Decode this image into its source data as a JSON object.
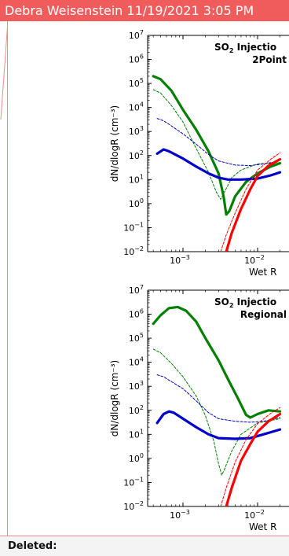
{
  "comment": {
    "author_date": "Debra Weisenstein 11/19/2021 3:05 PM",
    "footer_label": "Deleted:"
  },
  "colors": {
    "header_bg": "#f05c5c",
    "green": "#008000",
    "blue": "#0000c8",
    "red": "#ff0000"
  },
  "chart_data": [
    {
      "type": "line",
      "title_line1": "SO",
      "title_sub": "2",
      "title_rest": " Injectio",
      "title_line2": "2Point",
      "ylabel": "dN/dlogR (cm⁻³)",
      "xlabel": "Wet R",
      "x_scale": "log",
      "y_scale": "log",
      "ylim": [
        0.01,
        10000000
      ],
      "y_ticks": [
        {
          "exp": 7,
          "label": "10",
          "sup": "7"
        },
        {
          "exp": 6,
          "label": "10",
          "sup": "6"
        },
        {
          "exp": 5,
          "label": "10",
          "sup": "5"
        },
        {
          "exp": 4,
          "label": "10",
          "sup": "4"
        },
        {
          "exp": 3,
          "label": "10",
          "sup": "3"
        },
        {
          "exp": 2,
          "label": "10",
          "sup": "2"
        },
        {
          "exp": 1,
          "label": "10",
          "sup": "1"
        },
        {
          "exp": 0,
          "label": "10",
          "sup": "0"
        },
        {
          "exp": -1,
          "label": "10",
          "sup": "−1"
        },
        {
          "exp": -2,
          "label": "10",
          "sup": "−2"
        }
      ],
      "x_ticks": [
        {
          "value": 0.001,
          "label": "10",
          "sup": "−3"
        },
        {
          "value": 0.01,
          "label": "10",
          "sup": "−2"
        }
      ],
      "series": [
        {
          "style": "green-thick",
          "points": [
            [
              0.0004,
              200000
            ],
            [
              0.0005,
              150000
            ],
            [
              0.0007,
              50000
            ],
            [
              0.001,
              8000
            ],
            [
              0.0015,
              1200
            ],
            [
              0.0022,
              150
            ],
            [
              0.003,
              18
            ],
            [
              0.0035,
              2
            ],
            [
              0.0038,
              0.35
            ],
            [
              0.0042,
              0.5
            ],
            [
              0.005,
              2
            ],
            [
              0.007,
              8
            ],
            [
              0.01,
              18
            ],
            [
              0.015,
              35
            ],
            [
              0.02,
              48
            ]
          ]
        },
        {
          "style": "green-thin-dashed",
          "points": [
            [
              0.0004,
              55000
            ],
            [
              0.0005,
              40000
            ],
            [
              0.0007,
              12000
            ],
            [
              0.001,
              2500
            ],
            [
              0.0015,
              200
            ],
            [
              0.0022,
              20
            ],
            [
              0.0028,
              3
            ],
            [
              0.0032,
              1.5
            ],
            [
              0.0036,
              3
            ],
            [
              0.0045,
              12
            ],
            [
              0.006,
              25
            ],
            [
              0.01,
              45
            ],
            [
              0.02,
              50
            ]
          ]
        },
        {
          "style": "blue-thick",
          "points": [
            [
              0.00045,
              120
            ],
            [
              0.00055,
              180
            ],
            [
              0.00065,
              150
            ],
            [
              0.001,
              75
            ],
            [
              0.0015,
              35
            ],
            [
              0.0022,
              18
            ],
            [
              0.003,
              12
            ],
            [
              0.004,
              10
            ],
            [
              0.006,
              10
            ],
            [
              0.01,
              11
            ],
            [
              0.015,
              15
            ],
            [
              0.02,
              20
            ]
          ]
        },
        {
          "style": "blue-thin-dashed",
          "points": [
            [
              0.00045,
              3500
            ],
            [
              0.00055,
              2800
            ],
            [
              0.00065,
              2000
            ],
            [
              0.001,
              800
            ],
            [
              0.0015,
              300
            ],
            [
              0.0022,
              110
            ],
            [
              0.003,
              60
            ],
            [
              0.005,
              40
            ],
            [
              0.008,
              38
            ],
            [
              0.012,
              45
            ],
            [
              0.02,
              60
            ]
          ]
        },
        {
          "style": "red-thick",
          "points": [
            [
              0.0038,
              0.01
            ],
            [
              0.0045,
              0.06
            ],
            [
              0.006,
              0.6
            ],
            [
              0.008,
              4
            ],
            [
              0.01,
              14
            ],
            [
              0.014,
              38
            ],
            [
              0.02,
              70
            ]
          ]
        },
        {
          "style": "red-thin-dashed",
          "points": [
            [
              0.0032,
              0.01
            ],
            [
              0.0038,
              0.05
            ],
            [
              0.005,
              0.4
            ],
            [
              0.007,
              4
            ],
            [
              0.01,
              25
            ],
            [
              0.015,
              70
            ],
            [
              0.02,
              130
            ]
          ]
        }
      ]
    },
    {
      "type": "line",
      "title_line1": "SO",
      "title_sub": "2",
      "title_rest": " Injectio",
      "title_line2": "Regional",
      "ylabel": "dN/dlogR (cm⁻³)",
      "xlabel": "Wet R",
      "x_scale": "log",
      "y_scale": "log",
      "ylim": [
        0.01,
        10000000
      ],
      "y_ticks": [
        {
          "exp": 7,
          "label": "10",
          "sup": "7"
        },
        {
          "exp": 6,
          "label": "10",
          "sup": "6"
        },
        {
          "exp": 5,
          "label": "10",
          "sup": "5"
        },
        {
          "exp": 4,
          "label": "10",
          "sup": "4"
        },
        {
          "exp": 3,
          "label": "10",
          "sup": "3"
        },
        {
          "exp": 2,
          "label": "10",
          "sup": "2"
        },
        {
          "exp": 1,
          "label": "10",
          "sup": "1"
        },
        {
          "exp": 0,
          "label": "10",
          "sup": "0"
        },
        {
          "exp": -1,
          "label": "10",
          "sup": "−1"
        },
        {
          "exp": -2,
          "label": "10",
          "sup": "−2"
        }
      ],
      "x_ticks": [
        {
          "value": 0.001,
          "label": "10",
          "sup": "−3"
        },
        {
          "value": 0.01,
          "label": "10",
          "sup": "−2"
        }
      ],
      "series": [
        {
          "style": "green-thick",
          "points": [
            [
              0.0004,
              400000
            ],
            [
              0.0005,
              900000
            ],
            [
              0.00065,
              1800000
            ],
            [
              0.00085,
              2000000
            ],
            [
              0.0011,
              1400000
            ],
            [
              0.0015,
              500000
            ],
            [
              0.002,
              100000
            ],
            [
              0.003,
              12000
            ],
            [
              0.004,
              2000
            ],
            [
              0.0055,
              300
            ],
            [
              0.007,
              65
            ],
            [
              0.008,
              50
            ],
            [
              0.01,
              70
            ],
            [
              0.014,
              100
            ],
            [
              0.02,
              90
            ]
          ]
        },
        {
          "style": "green-thin-dashed",
          "points": [
            [
              0.0004,
              35000
            ],
            [
              0.0005,
              25000
            ],
            [
              0.0007,
              9000
            ],
            [
              0.001,
              2500
            ],
            [
              0.0015,
              400
            ],
            [
              0.002,
              60
            ],
            [
              0.0026,
              5
            ],
            [
              0.003,
              0.6
            ],
            [
              0.0033,
              0.2
            ],
            [
              0.0036,
              0.35
            ],
            [
              0.0045,
              2
            ],
            [
              0.006,
              10
            ],
            [
              0.01,
              30
            ],
            [
              0.02,
              45
            ]
          ]
        },
        {
          "style": "blue-thick",
          "points": [
            [
              0.00045,
              30
            ],
            [
              0.00055,
              70
            ],
            [
              0.00065,
              90
            ],
            [
              0.00075,
              80
            ],
            [
              0.001,
              45
            ],
            [
              0.0015,
              20
            ],
            [
              0.0022,
              10
            ],
            [
              0.003,
              7
            ],
            [
              0.005,
              6.5
            ],
            [
              0.008,
              7
            ],
            [
              0.012,
              10
            ],
            [
              0.02,
              16
            ]
          ]
        },
        {
          "style": "blue-thin-dashed",
          "points": [
            [
              0.00045,
              3000
            ],
            [
              0.00055,
              2500
            ],
            [
              0.00065,
              1800
            ],
            [
              0.001,
              800
            ],
            [
              0.0015,
              250
            ],
            [
              0.0022,
              80
            ],
            [
              0.003,
              45
            ],
            [
              0.005,
              35
            ],
            [
              0.008,
              32
            ],
            [
              0.012,
              35
            ],
            [
              0.02,
              50
            ]
          ]
        },
        {
          "style": "red-thick",
          "points": [
            [
              0.0038,
              0.01
            ],
            [
              0.0045,
              0.06
            ],
            [
              0.006,
              0.8
            ],
            [
              0.008,
              4
            ],
            [
              0.01,
              13
            ],
            [
              0.014,
              35
            ],
            [
              0.02,
              70
            ]
          ]
        },
        {
          "style": "red-thin-dashed",
          "points": [
            [
              0.0032,
              0.01
            ],
            [
              0.0038,
              0.06
            ],
            [
              0.005,
              0.7
            ],
            [
              0.007,
              6
            ],
            [
              0.01,
              28
            ],
            [
              0.015,
              75
            ],
            [
              0.02,
              130
            ]
          ]
        }
      ]
    }
  ]
}
